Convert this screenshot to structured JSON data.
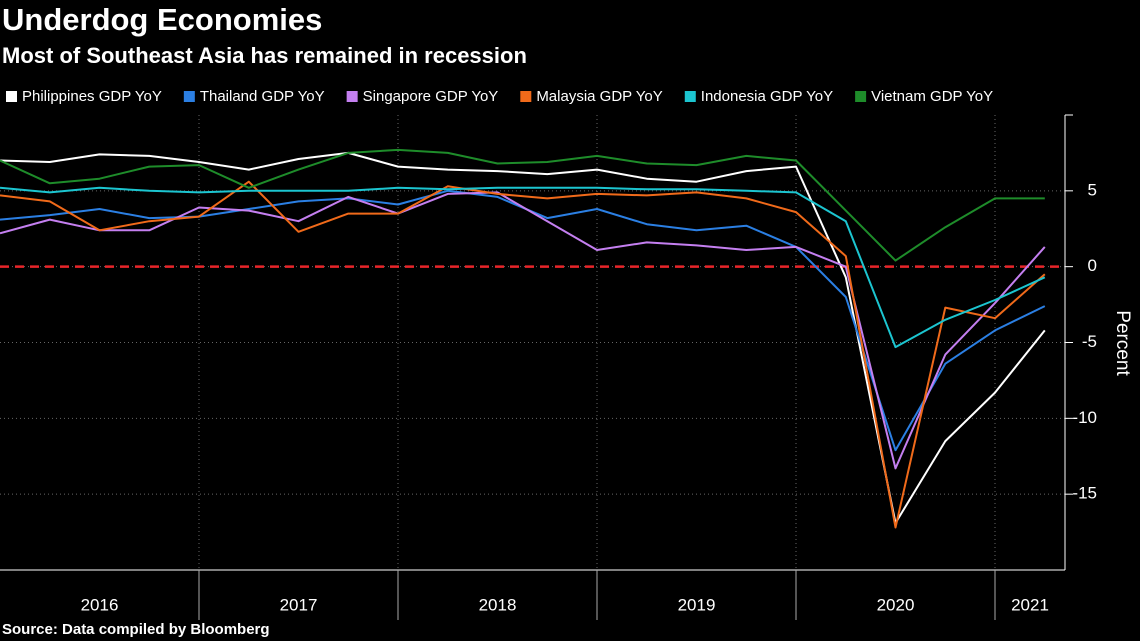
{
  "chart_data": {
    "type": "line",
    "title": "Underdog Economies",
    "subtitle": "Most of Southeast Asia has remained in recession",
    "source": "Source: Data compiled by Bloomberg",
    "y_label": "Percent",
    "year_bands": [
      "2016",
      "2017",
      "2018",
      "2019",
      "2020",
      "2021"
    ],
    "ylim": [
      -20,
      10
    ],
    "yticks": [
      -15,
      -10,
      -5,
      0,
      5
    ],
    "grid": true,
    "reference_line": 0,
    "reference_line_color": "#e8252a",
    "series": [
      {
        "name": "Philippines GDP YoY",
        "color": "#ffffff",
        "values": [
          7.0,
          6.9,
          7.4,
          7.3,
          6.9,
          6.4,
          7.1,
          7.5,
          6.6,
          6.4,
          6.3,
          6.1,
          6.4,
          5.8,
          5.6,
          6.3,
          6.6,
          -0.7,
          -16.9,
          -11.5,
          -8.3,
          -4.2
        ]
      },
      {
        "name": "Thailand GDP YoY",
        "color": "#2b7fe3",
        "values": [
          3.1,
          3.4,
          3.8,
          3.2,
          3.3,
          3.8,
          4.3,
          4.5,
          4.1,
          5.0,
          4.6,
          3.2,
          3.8,
          2.8,
          2.4,
          2.7,
          1.3,
          -2.0,
          -12.1,
          -6.4,
          -4.2,
          -2.6
        ]
      },
      {
        "name": "Singapore GDP YoY",
        "color": "#c47ff0",
        "values": [
          2.2,
          3.1,
          2.4,
          2.4,
          3.9,
          3.7,
          3.0,
          4.6,
          3.5,
          4.8,
          4.9,
          3.0,
          1.1,
          1.6,
          1.4,
          1.1,
          1.3,
          0.0,
          -13.3,
          -5.8,
          -2.4,
          1.3
        ]
      },
      {
        "name": "Malaysia GDP YoY",
        "color": "#f06a1a",
        "values": [
          4.7,
          4.3,
          2.4,
          3.0,
          3.3,
          5.6,
          2.3,
          3.5,
          3.5,
          5.3,
          4.8,
          4.5,
          4.8,
          4.7,
          4.9,
          4.5,
          3.6,
          0.7,
          -17.2,
          -2.7,
          -3.4,
          -0.5
        ]
      },
      {
        "name": "Indonesia GDP YoY",
        "color": "#1cc5d0",
        "values": [
          5.2,
          4.9,
          5.2,
          5.0,
          4.9,
          5.0,
          5.0,
          5.0,
          5.2,
          5.1,
          5.2,
          5.2,
          5.2,
          5.1,
          5.1,
          5.0,
          4.9,
          3.0,
          -5.3,
          -3.5,
          -2.2,
          -0.7
        ]
      },
      {
        "name": "Vietnam GDP YoY",
        "color": "#1e8c2a",
        "values": [
          7.0,
          5.5,
          5.8,
          6.6,
          6.7,
          5.2,
          6.4,
          7.5,
          7.7,
          7.5,
          6.8,
          6.9,
          7.3,
          6.8,
          6.7,
          7.3,
          7.0,
          3.7,
          0.4,
          2.6,
          4.5,
          4.5
        ]
      }
    ]
  }
}
